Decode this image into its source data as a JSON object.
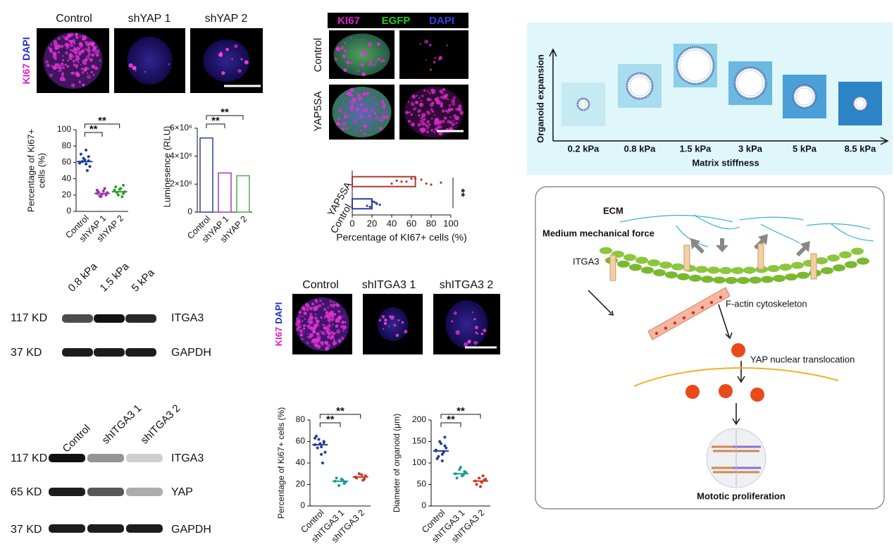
{
  "panel_a": {
    "labels": [
      "Control",
      "shYAP 1",
      "shYAP 2"
    ],
    "stain": [
      "KI67",
      "DAPI"
    ]
  },
  "panel_c": {
    "stain": [
      "KI67",
      "EGFP",
      "DAPI"
    ],
    "rows": [
      "Control",
      "YAP5SA"
    ]
  },
  "panel_d": {
    "ylabel": "Organoid expansion",
    "xlabel": "Matrix stiffness",
    "stiffness": [
      "0.2 kPa",
      "0.8 kPa",
      "1.5 kPa",
      "3 kPa",
      "5 kPa",
      "8.5 kPa"
    ]
  },
  "blot_e": {
    "lanes": [
      "0.8 kPa",
      "1.5 kPa",
      "5 kPa"
    ],
    "rows": [
      {
        "size": "117 KD",
        "protein": "ITGA3"
      },
      {
        "size": "37 KD",
        "protein": "GAPDH"
      }
    ]
  },
  "blot_f": {
    "lanes": [
      "Control",
      "shITGA3 1",
      "shITGA3 2"
    ],
    "rows": [
      {
        "size": "117 KD",
        "protein": "ITGA3"
      },
      {
        "size": "65 KD",
        "protein": "YAP"
      },
      {
        "size": "37 KD",
        "protein": "GAPDH"
      }
    ]
  },
  "panel_g": {
    "labels": [
      "Control",
      "shITGA3 1",
      "shITGA3 2"
    ],
    "stain": [
      "KI67",
      "DAPI"
    ]
  },
  "diagram": {
    "ecm": "ECM",
    "force": "Medium mechanical force",
    "integrin": "ITGA3",
    "actin": "F-actin cytoskeleton",
    "yap": "YAP nuclear translocation",
    "outcome": "Mototic proliferation"
  },
  "chart_data": [
    {
      "type": "dot",
      "ylabel": [
        "Percentage of Ki67+",
        "cells (%)"
      ],
      "categories": [
        "Control",
        "shYAP 1",
        "shYAP 2"
      ],
      "colors": [
        "#1f3c99",
        "#9b30a8",
        "#2aa02a"
      ],
      "values": [
        61,
        22,
        24
      ],
      "points": [
        [
          60,
          62,
          58,
          65,
          70,
          55,
          50,
          63,
          61,
          59,
          67,
          75
        ],
        [
          22,
          20,
          25,
          18,
          24,
          23,
          28,
          21,
          19,
          26
        ],
        [
          25,
          22,
          28,
          20,
          30,
          24,
          18,
          27,
          23,
          26,
          32
        ]
      ],
      "ylim": [
        0,
        100
      ],
      "yticks": [
        0,
        20,
        40,
        60,
        80,
        100
      ],
      "annotations": [
        "**",
        "**"
      ]
    },
    {
      "type": "bar",
      "ylabel": "Luminesence (RLU)",
      "categories": [
        "Control",
        "shYAP 1",
        "shYAP 2"
      ],
      "colors": [
        "#2c3fa8",
        "#a03cb0",
        "#4cae4c"
      ],
      "values": [
        5300000,
        2800000,
        2600000
      ],
      "ylim": [
        0,
        6500000
      ],
      "yticks": [
        0,
        {
          "value": 2000000,
          "label": "2×10⁶"
        },
        {
          "value": 4000000,
          "label": "4×10⁶"
        },
        {
          "value": 6000000,
          "label": "6×10⁶"
        }
      ],
      "annotations": [
        "**",
        "**"
      ]
    },
    {
      "type": "hbar",
      "xlabel": "Percentage of KI67+ cells (%)",
      "categories": [
        "YAP5SA",
        "Control"
      ],
      "colors": [
        "#b03a2e",
        "#2c3fa8"
      ],
      "values": [
        64,
        20
      ],
      "points": [
        [
          64,
          40,
          55,
          70,
          80,
          90,
          45,
          60,
          75,
          50
        ],
        [
          20,
          15,
          25,
          22,
          18,
          28,
          24
        ]
      ],
      "xlim": [
        0,
        100
      ],
      "xticks": [
        0,
        20,
        40,
        60,
        80,
        100
      ],
      "annotations": [
        "**"
      ]
    },
    {
      "type": "dot",
      "ylabel": "Percentage of Ki67+ cells (%)",
      "categories": [
        "Control",
        "shITGA3 1",
        "shITGA3 2"
      ],
      "colors": [
        "#1f3c99",
        "#1a9a9a",
        "#c8361e"
      ],
      "values": [
        57,
        23,
        27
      ],
      "points": [
        [
          57,
          60,
          55,
          62,
          65,
          50,
          40,
          58,
          54,
          63,
          59,
          48
        ],
        [
          23,
          21,
          25,
          19,
          26,
          22,
          24
        ],
        [
          27,
          25,
          29,
          30,
          26,
          28,
          24
        ]
      ],
      "ylim": [
        0,
        80
      ],
      "yticks": [
        0,
        20,
        40,
        60,
        80
      ],
      "annotations": [
        "**",
        "**"
      ]
    },
    {
      "type": "dot",
      "ylabel": "Diameter of organoid (μm)",
      "categories": [
        "Control",
        "shITGA3 1",
        "shITGA3 2"
      ],
      "colors": [
        "#1f3c99",
        "#1a9a9a",
        "#c8361e"
      ],
      "values": [
        128,
        75,
        58
      ],
      "points": [
        [
          128,
          140,
          120,
          150,
          110,
          135,
          125,
          145,
          115,
          130,
          160,
          105
        ],
        [
          75,
          80,
          70,
          85,
          65,
          78,
          72,
          90
        ],
        [
          58,
          60,
          55,
          65,
          50,
          62,
          70,
          45
        ]
      ],
      "ylim": [
        0,
        200
      ],
      "yticks": [
        0,
        50,
        100,
        150,
        200
      ],
      "annotations": [
        "**",
        "**"
      ]
    }
  ]
}
